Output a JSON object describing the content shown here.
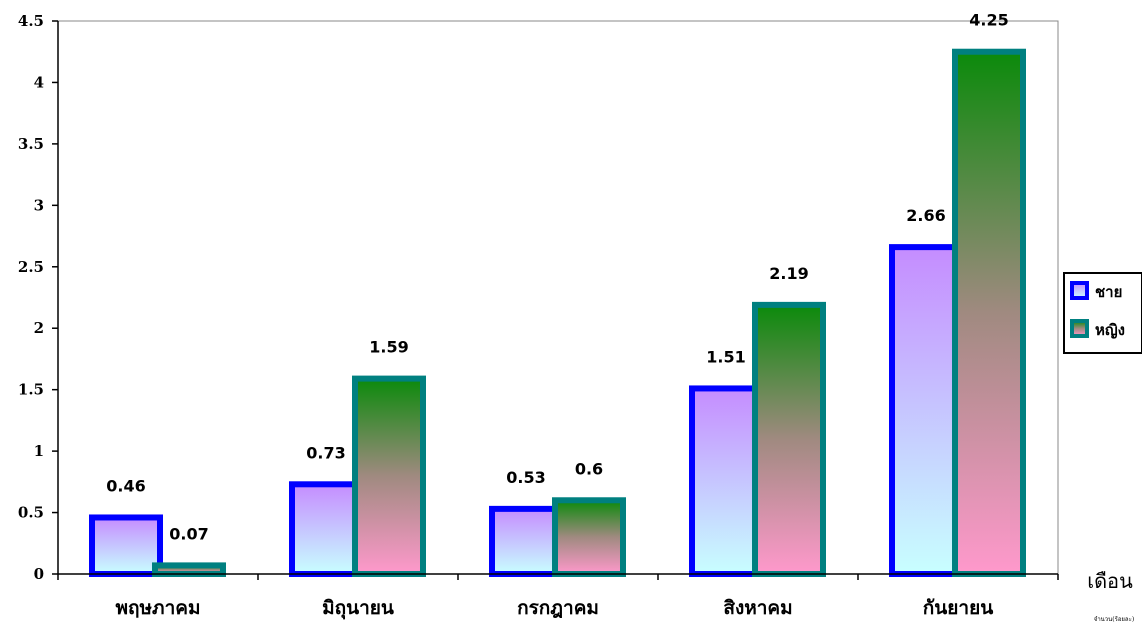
{
  "chart_data": {
    "type": "bar",
    "categories": [
      "พฤษภาคม",
      "มิถุนายน",
      "กรกฎาคม",
      "สิงหาคม",
      "กันยายน"
    ],
    "series": [
      {
        "name": "ชาย",
        "values": [
          0.46,
          0.73,
          0.53,
          1.51,
          2.66
        ],
        "border_color": "#0000ff"
      },
      {
        "name": "หญิง",
        "values": [
          0.07,
          1.59,
          0.6,
          2.19,
          4.25
        ],
        "border_color": "#008080"
      }
    ],
    "y_ticks": [
      "0",
      "0.5",
      "1",
      "1.5",
      "2",
      "2.5",
      "3",
      "3.5",
      "4",
      "4.5"
    ],
    "ylim": [
      0,
      4.5
    ],
    "xlabel": "เดือน",
    "footnote": "จำนวน(ร้อยละ)",
    "legend_position": "right",
    "grid": false
  }
}
